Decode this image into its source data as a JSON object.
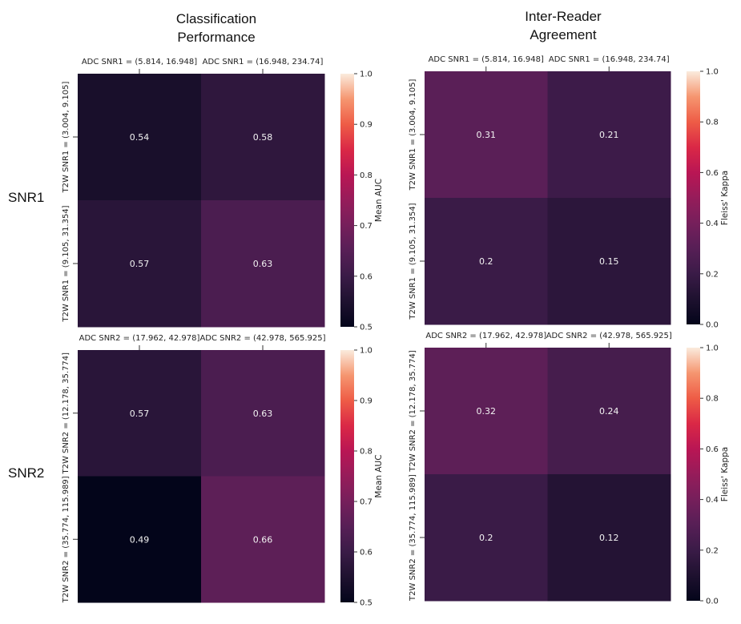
{
  "column_headers": {
    "left": [
      "Classification",
      "Performance"
    ],
    "right": [
      "Inter-Reader",
      "Agreement"
    ]
  },
  "row_labels": [
    "SNR1",
    "SNR2"
  ],
  "chart_data": [
    {
      "type": "heatmap",
      "title": "Classification Performance — SNR1",
      "x_categories": [
        "ADC SNR1 = (5.814, 16.948]",
        "ADC SNR1 = (16.948, 234.74]"
      ],
      "y_categories": [
        "T2W SNR1 = (3.004, 9.105]",
        "T2W SNR1 = (9.105, 31.354]"
      ],
      "values": [
        [
          0.54,
          0.58
        ],
        [
          0.57,
          0.63
        ]
      ],
      "value_labels": [
        [
          "0.54",
          "0.58"
        ],
        [
          "0.57",
          "0.63"
        ]
      ],
      "colorbar": {
        "label": "Mean AUC",
        "range": [
          0.5,
          1.0
        ],
        "ticks": [
          "0.5",
          "0.6",
          "0.7",
          "0.8",
          "0.9",
          "1.0"
        ]
      },
      "colormap": "rocket"
    },
    {
      "type": "heatmap",
      "title": "Inter-Reader Agreement — SNR1",
      "x_categories": [
        "ADC SNR1 = (5.814, 16.948]",
        "ADC SNR1 = (16.948, 234.74]"
      ],
      "y_categories": [
        "T2W SNR1 = (3.004, 9.105]",
        "T2W SNR1 = (9.105, 31.354]"
      ],
      "values": [
        [
          0.31,
          0.21
        ],
        [
          0.2,
          0.15
        ]
      ],
      "value_labels": [
        [
          "0.31",
          "0.21"
        ],
        [
          "0.2",
          "0.15"
        ]
      ],
      "colorbar": {
        "label": "Fleiss' Kappa",
        "range": [
          0.0,
          1.0
        ],
        "ticks": [
          "0.0",
          "0.2",
          "0.4",
          "0.6",
          "0.8",
          "1.0"
        ]
      },
      "colormap": "rocket"
    },
    {
      "type": "heatmap",
      "title": "Classification Performance — SNR2",
      "x_categories": [
        "ADC SNR2 = (17.962, 42.978]",
        "ADC SNR2 = (42.978, 565.925]"
      ],
      "y_categories": [
        "T2W SNR2 = (12.178, 35.774]",
        "T2W SNR2 = (35.774, 115.989]"
      ],
      "values": [
        [
          0.57,
          0.63
        ],
        [
          0.49,
          0.66
        ]
      ],
      "value_labels": [
        [
          "0.57",
          "0.63"
        ],
        [
          "0.49",
          "0.66"
        ]
      ],
      "colorbar": {
        "label": "Mean AUC",
        "range": [
          0.5,
          1.0
        ],
        "ticks": [
          "0.5",
          "0.6",
          "0.7",
          "0.8",
          "0.9",
          "1.0"
        ]
      },
      "colormap": "rocket"
    },
    {
      "type": "heatmap",
      "title": "Inter-Reader Agreement — SNR2",
      "x_categories": [
        "ADC SNR2 = (17.962, 42.978]",
        "ADC SNR2 = (42.978, 565.925]"
      ],
      "y_categories": [
        "T2W SNR2 = (12.178, 35.774]",
        "T2W SNR2 = (35.774, 115.989]"
      ],
      "values": [
        [
          0.32,
          0.24
        ],
        [
          0.2,
          0.12
        ]
      ],
      "value_labels": [
        [
          "0.32",
          "0.24"
        ],
        [
          "0.2",
          "0.12"
        ]
      ],
      "colorbar": {
        "label": "Fleiss' Kappa",
        "range": [
          0.0,
          1.0
        ],
        "ticks": [
          "0.0",
          "0.2",
          "0.4",
          "0.6",
          "0.8",
          "1.0"
        ]
      },
      "colormap": "rocket"
    }
  ]
}
